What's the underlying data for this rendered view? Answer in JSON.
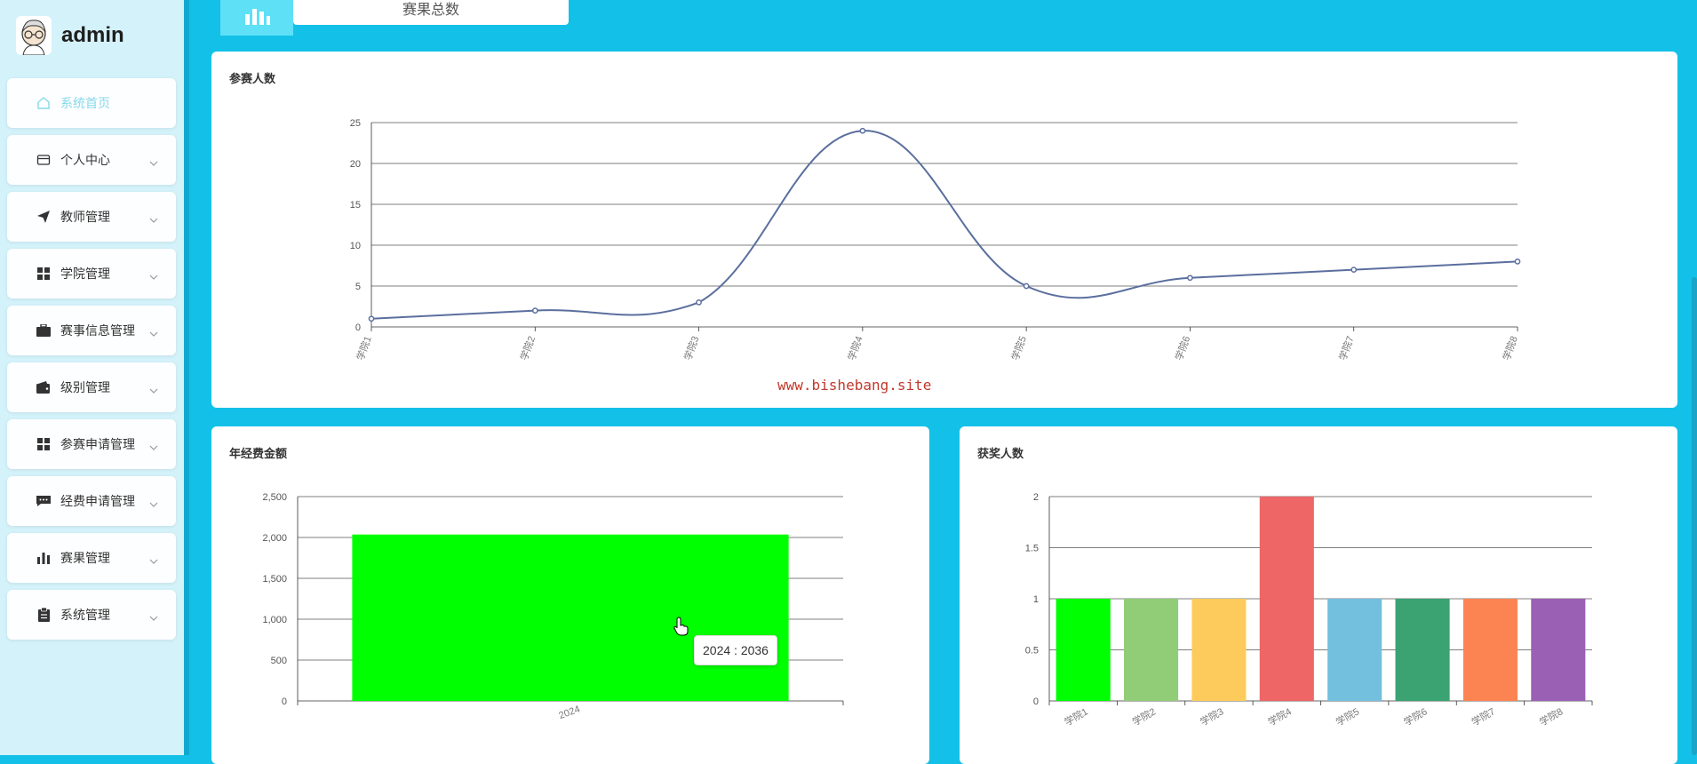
{
  "app": {
    "user": "admin"
  },
  "sidebar": {
    "items": [
      {
        "label": "系统首页",
        "icon": "home-icon",
        "active": true
      },
      {
        "label": "个人中心",
        "icon": "wallet-icon"
      },
      {
        "label": "教师管理",
        "icon": "send-icon"
      },
      {
        "label": "学院管理",
        "icon": "grid-icon"
      },
      {
        "label": "赛事信息管理",
        "icon": "briefcase-icon"
      },
      {
        "label": "级别管理",
        "icon": "wallet-solid-icon"
      },
      {
        "label": "参赛申请管理",
        "icon": "grid-icon"
      },
      {
        "label": "经费申请管理",
        "icon": "message-icon"
      },
      {
        "label": "赛果管理",
        "icon": "bar-chart-icon"
      },
      {
        "label": "系统管理",
        "icon": "clipboard-icon"
      }
    ]
  },
  "top_tab": {
    "label": "赛果总数"
  },
  "watermark": "www.bishebang.site",
  "tooltip": "2024 : 2036",
  "chart_data": [
    {
      "type": "line",
      "title": "参赛人数",
      "categories": [
        "学院1",
        "学院2",
        "学院3",
        "学院4",
        "学院5",
        "学院6",
        "学院7",
        "学院8"
      ],
      "values": [
        1,
        2,
        3,
        24,
        5,
        6,
        7,
        8
      ],
      "ylim": [
        0,
        25
      ],
      "yticks": [
        0,
        5,
        10,
        15,
        20,
        25
      ],
      "color": "#5b6f9e",
      "grid": true
    },
    {
      "type": "bar",
      "title": "年经费金额",
      "categories": [
        "2024"
      ],
      "values": [
        2036
      ],
      "ylim": [
        0,
        2500
      ],
      "yticks": [
        0,
        500,
        1000,
        1500,
        2000,
        2500
      ],
      "ytick_labels": [
        "0",
        "500",
        "1,000",
        "1,500",
        "2,000",
        "2,500"
      ],
      "colors": [
        "#00ff00"
      ],
      "grid": true
    },
    {
      "type": "bar",
      "title": "获奖人数",
      "categories": [
        "学院1",
        "学院2",
        "学院3",
        "学院4",
        "学院5",
        "学院6",
        "学院7",
        "学院8"
      ],
      "values": [
        1,
        1,
        1,
        2,
        1,
        1,
        1,
        1
      ],
      "ylim": [
        0,
        2
      ],
      "yticks": [
        0,
        0.5,
        1,
        1.5,
        2
      ],
      "ytick_labels": [
        "0",
        "0.5",
        "1",
        "1.5",
        "2"
      ],
      "colors": [
        "#00ff00",
        "#91cd77",
        "#fccb5c",
        "#ee6666",
        "#73c0de",
        "#3ba272",
        "#fc8452",
        "#9a60b4"
      ],
      "grid": true
    }
  ]
}
